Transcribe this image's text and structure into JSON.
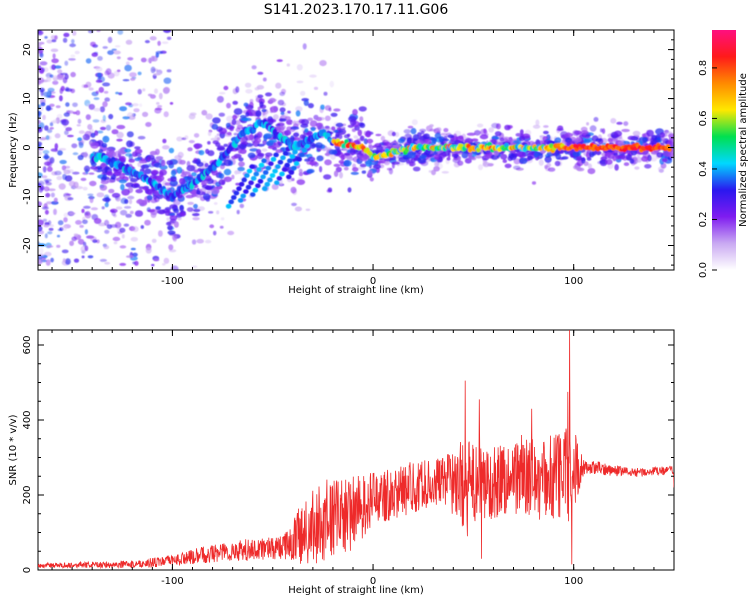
{
  "title": "S141.2023.170.17.11.G06",
  "colors": {
    "axis": "#000000",
    "snr_line": "#ee2a2a",
    "colormap": [
      "#ffffff",
      "#c9a9f2",
      "#7f1cf0",
      "#2a18ef",
      "#00d8ff",
      "#00e050",
      "#ffe800",
      "#ff8a00",
      "#ff1a1a",
      "#ff0f7f"
    ]
  },
  "chart_data": [
    {
      "type": "heatmap",
      "xlabel": "Height of straight line (km)",
      "ylabel": "Frequency (Hz)",
      "xlim": [
        -167,
        150
      ],
      "ylim": [
        -25,
        24
      ],
      "xticks": [
        -100,
        0,
        100
      ],
      "yticks": [
        -20,
        -10,
        0,
        10,
        20
      ],
      "colorbar": {
        "label": "Normalized spectral amplitude",
        "range": [
          0.0,
          0.95
        ],
        "ticks": [
          0.0,
          0.2,
          0.4,
          0.6,
          0.8
        ]
      },
      "ridge": {
        "note_points": [
          {
            "x": -135,
            "y": -2
          },
          {
            "x": -110,
            "y": -7
          },
          {
            "x": -100,
            "y": -10
          },
          {
            "x": -85,
            "y": -6
          },
          {
            "x": -75,
            "y": -2
          },
          {
            "x": -65,
            "y": 3
          },
          {
            "x": -55,
            "y": 5
          },
          {
            "x": -40,
            "y": 0
          },
          {
            "x": -25,
            "y": 3
          },
          {
            "x": -20,
            "y": 1
          },
          {
            "x": -5,
            "y": 0
          },
          {
            "x": 0,
            "y": -2
          },
          {
            "x": 20,
            "y": 0
          },
          {
            "x": 50,
            "y": 0
          },
          {
            "x": 90,
            "y": 0
          },
          {
            "x": 100,
            "y": 0
          },
          {
            "x": 148,
            "y": 0
          }
        ]
      }
    },
    {
      "type": "line",
      "xlabel": "Height of straight line (km)",
      "ylabel": "SNR (10 * v/v)",
      "xlim": [
        -167,
        150
      ],
      "ylim": [
        0,
        640
      ],
      "xticks": [
        -100,
        0,
        100
      ],
      "yticks": [
        0,
        200,
        400,
        600
      ],
      "series": [
        {
          "envelope": [
            {
              "x": -167,
              "base": 12,
              "noise": 6
            },
            {
              "x": -120,
              "base": 15,
              "noise": 10
            },
            {
              "x": -100,
              "base": 25,
              "noise": 15
            },
            {
              "x": -80,
              "base": 45,
              "noise": 25
            },
            {
              "x": -60,
              "base": 55,
              "noise": 30
            },
            {
              "x": -45,
              "base": 60,
              "noise": 30
            },
            {
              "x": -35,
              "base": 95,
              "noise": 90
            },
            {
              "x": -25,
              "base": 130,
              "noise": 110
            },
            {
              "x": -10,
              "base": 150,
              "noise": 100
            },
            {
              "x": 0,
              "base": 190,
              "noise": 70
            },
            {
              "x": 20,
              "base": 220,
              "noise": 70
            },
            {
              "x": 35,
              "base": 240,
              "noise": 60
            },
            {
              "x": 45,
              "base": 230,
              "noise": 120
            },
            {
              "x": 55,
              "base": 230,
              "noise": 100
            },
            {
              "x": 70,
              "base": 250,
              "noise": 100
            },
            {
              "x": 85,
              "base": 240,
              "noise": 110
            },
            {
              "x": 98,
              "base": 260,
              "noise": 140
            },
            {
              "x": 105,
              "base": 275,
              "noise": 20
            },
            {
              "x": 130,
              "base": 260,
              "noise": 12
            },
            {
              "x": 148,
              "base": 265,
              "noise": 12
            }
          ],
          "spikes": [
            {
              "x": 46,
              "y": 505
            },
            {
              "x": 47,
              "y": 90
            },
            {
              "x": 53,
              "y": 455
            },
            {
              "x": 54,
              "y": 30
            },
            {
              "x": 74,
              "y": 360
            },
            {
              "x": 79,
              "y": 430
            },
            {
              "x": 97,
              "y": 475
            },
            {
              "x": 98,
              "y": 640
            },
            {
              "x": 99,
              "y": 15
            },
            {
              "x": 101,
              "y": 360
            },
            {
              "x": 150,
              "y": 220
            }
          ]
        }
      ]
    }
  ]
}
